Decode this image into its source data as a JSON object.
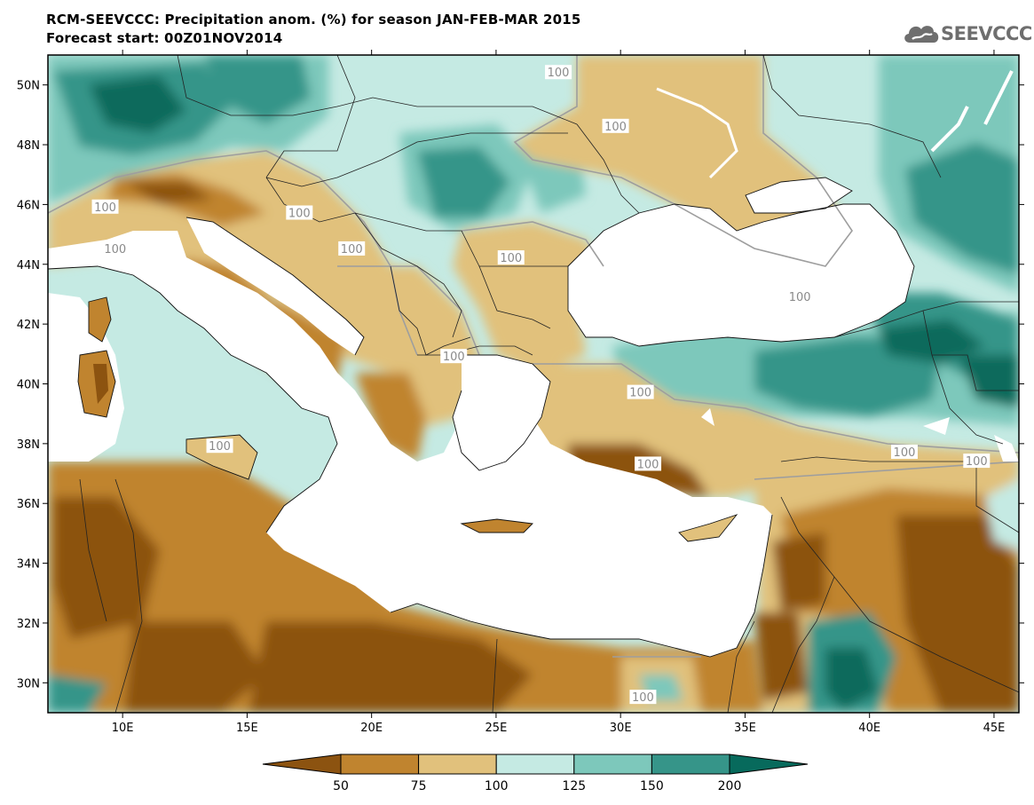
{
  "title_line1": "RCM-SEEVCCC: Precipitation anom. (%) for season JAN-FEB-MAR 2015",
  "title_line2": "Forecast start: 00Z01NOV2014",
  "logo_text": "SEEVCCC",
  "logo_icon": "cloud-icon",
  "map": {
    "lon_range": [
      7,
      46
    ],
    "lat_range": [
      29,
      51
    ],
    "lat_ticks": [
      "30N",
      "32N",
      "34N",
      "36N",
      "38N",
      "40N",
      "42N",
      "44N",
      "46N",
      "48N",
      "50N"
    ],
    "lon_ticks": [
      "10E",
      "15E",
      "20E",
      "25E",
      "30E",
      "35E",
      "40E",
      "45E"
    ],
    "contour_label": "100",
    "contour_labels": [
      {
        "text": "100",
        "lon": 27.5,
        "lat": 50.4
      },
      {
        "text": "100",
        "lon": 29.8,
        "lat": 48.6
      },
      {
        "text": "100",
        "lon": 17.1,
        "lat": 45.7
      },
      {
        "text": "100",
        "lon": 9.3,
        "lat": 45.9
      },
      {
        "text": "100",
        "lon": 9.7,
        "lat": 44.5
      },
      {
        "text": "100",
        "lon": 19.2,
        "lat": 44.5
      },
      {
        "text": "100",
        "lon": 25.6,
        "lat": 44.2
      },
      {
        "text": "100",
        "lon": 23.3,
        "lat": 40.9
      },
      {
        "text": "100",
        "lon": 37.2,
        "lat": 42.9
      },
      {
        "text": "100",
        "lon": 30.8,
        "lat": 39.7
      },
      {
        "text": "100",
        "lon": 41.4,
        "lat": 37.7
      },
      {
        "text": "100",
        "lon": 44.3,
        "lat": 37.4
      },
      {
        "text": "100",
        "lon": 31.1,
        "lat": 37.3
      },
      {
        "text": "100",
        "lon": 13.9,
        "lat": 37.9
      },
      {
        "text": "100",
        "lon": 30.9,
        "lat": 29.5
      }
    ]
  },
  "colorbar": {
    "labels": [
      "50",
      "75",
      "100",
      "125",
      "150",
      "200"
    ],
    "colors": [
      "#8c5310",
      "#c0842f",
      "#e1c17c",
      "#c5eae3",
      "#7dc8bb",
      "#369589",
      "#076a5c"
    ]
  },
  "colors": {
    "sea": "#ffffff",
    "frame": "#000000"
  }
}
